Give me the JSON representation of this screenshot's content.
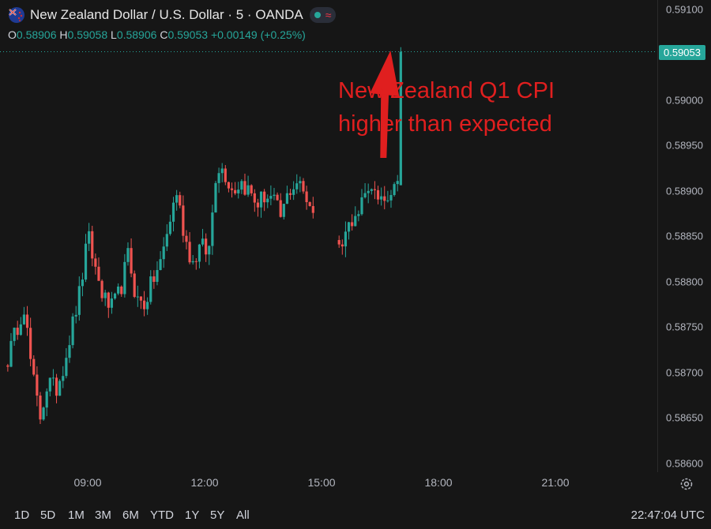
{
  "header": {
    "title": "New Zealand Dollar / U.S. Dollar · 5 · OANDA",
    "ohlc": {
      "o_label": "O",
      "o_value": "0.58906",
      "h_label": "H",
      "h_value": "0.59058",
      "l_label": "L",
      "l_value": "0.58906",
      "c_label": "C",
      "c_value": "0.59053",
      "change": "+0.00149 (+0.25%)"
    },
    "flag_icon": "nz-flag-icon",
    "status_icons": [
      "market-open-icon",
      "delay-icon"
    ]
  },
  "annotation": {
    "line1": "New Zealand Q1 CPI",
    "line2": "higher than expected",
    "color": "#e01f1f"
  },
  "price_badge": "0.59053",
  "bottom_bar": {
    "ranges": [
      "1D",
      "5D",
      "1M",
      "3M",
      "6M",
      "YTD",
      "1Y",
      "5Y",
      "All"
    ],
    "clock": "22:47:04 UTC"
  },
  "colors": {
    "up": "#26a69a",
    "down": "#ef5350",
    "background": "#161616"
  },
  "chart_data": {
    "type": "candlestick",
    "x_ticks": [
      "09:00",
      "12:00",
      "15:00",
      "18:00",
      "21:00"
    ],
    "x_tick_hours": [
      9,
      12,
      15,
      18,
      21
    ],
    "y_ticks": [
      "0.59100",
      "0.59050",
      "0.59000",
      "0.58950",
      "0.58900",
      "0.58850",
      "0.58800",
      "0.58750",
      "0.58700",
      "0.58650",
      "0.58600"
    ],
    "ylim": [
      0.5859,
      0.5911
    ],
    "last_price": 0.59053,
    "interval_minutes": 5,
    "first_bar_hour": 6.95,
    "segments": [
      {
        "start": 0,
        "bars": 95,
        "anchors": [
          0.58715,
          0.58745,
          0.58775,
          0.587,
          0.5865,
          0.5869,
          0.5868,
          0.5871,
          0.5875,
          0.5879,
          0.5885,
          0.5881,
          0.5878,
          0.5877,
          0.5879,
          0.5883,
          0.5878,
          0.58775,
          0.588,
          0.5882,
          0.5886,
          0.589,
          0.5885,
          0.5882,
          0.5884,
          0.5883,
          0.5893,
          0.5892,
          0.589,
          0.5891,
          0.589,
          0.58885,
          0.58895,
          0.5889,
          0.5887,
          0.589,
          0.5891,
          0.58895,
          0.5888
        ]
      },
      {
        "start": 102,
        "bars": 19,
        "anchors": [
          0.5884,
          0.5886,
          0.5888,
          0.5889,
          0.589,
          0.58895,
          0.589,
          0.58905
        ]
      }
    ],
    "final_bar": {
      "open": 0.58906,
      "high": 0.59058,
      "low": 0.58906,
      "close": 0.59053
    }
  }
}
